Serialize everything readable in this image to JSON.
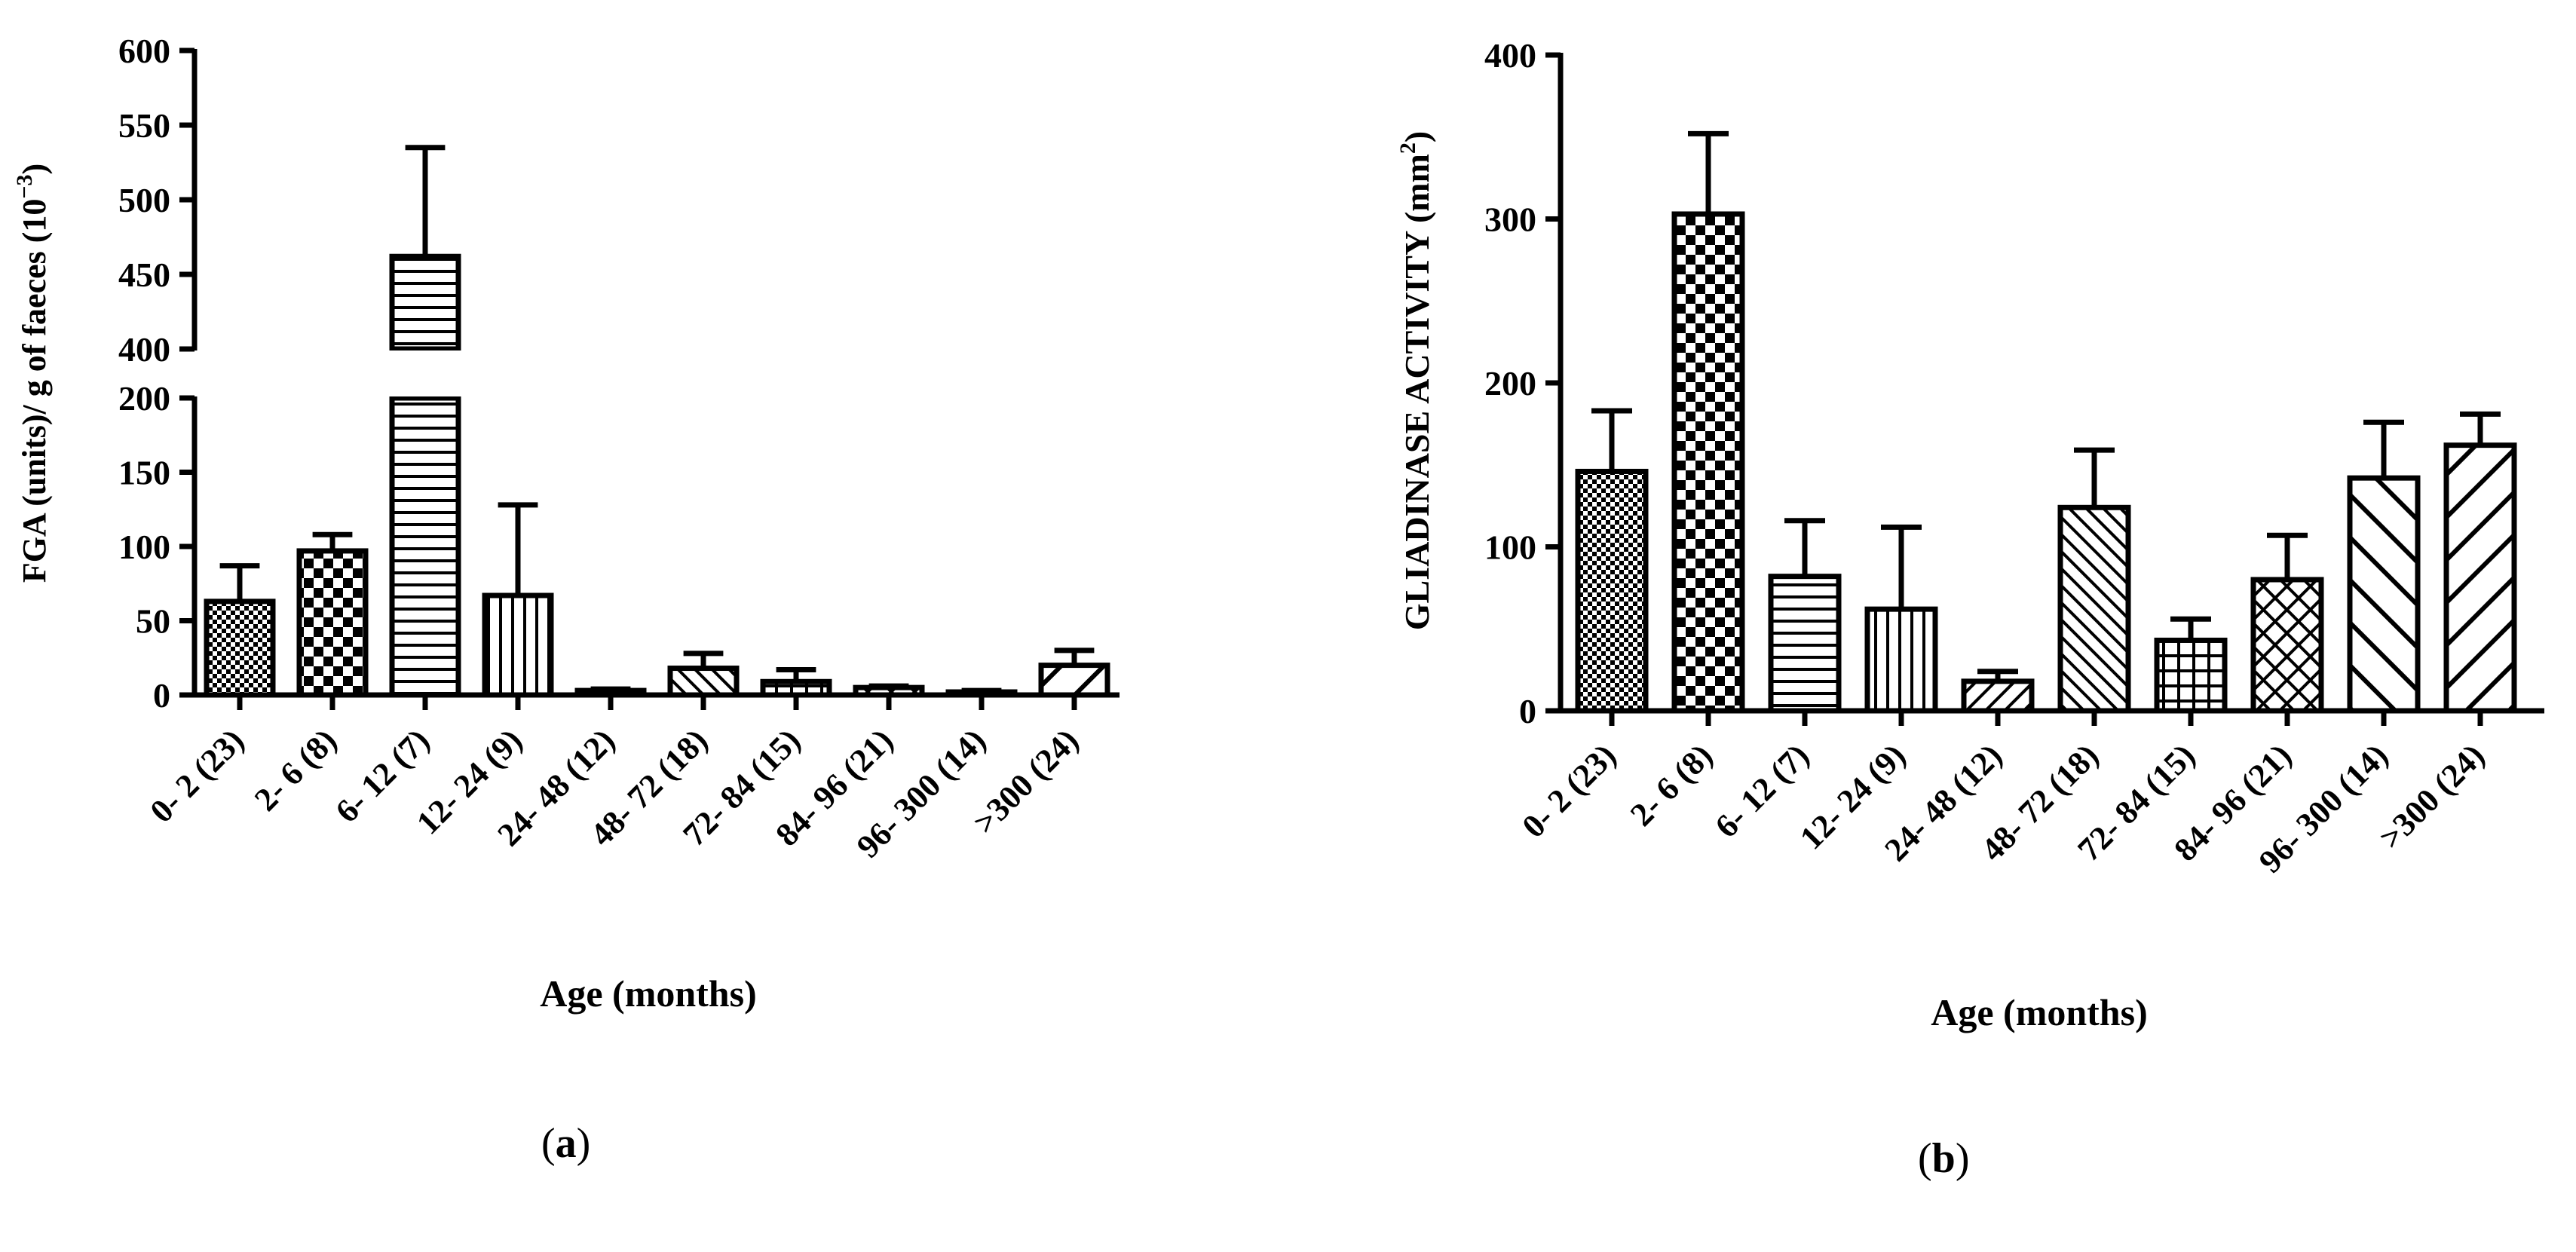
{
  "captions": {
    "a_prefix": "(",
    "a_letter": "a",
    "a_suffix": ")",
    "b_prefix": "(",
    "b_letter": "b",
    "b_suffix": ")"
  },
  "chart_data": [
    {
      "type": "bar",
      "panel": "a",
      "ylabel_main": "FGA (units)/ g of faeces (10",
      "ylabel_exp": "−3",
      "ylabel_close": ")",
      "xlabel": "Age (months)",
      "categories": [
        "0- 2 (23)",
        "2- 6 (8)",
        "6- 12 (7)",
        "12- 24 (9)",
        "24- 48 (12)",
        "48- 72 (18)",
        "72- 84 (15)",
        "84- 96 (21)",
        "96- 300 (14)",
        ">300 (24)"
      ],
      "values": [
        63,
        97,
        462,
        67,
        3,
        18,
        9,
        5,
        2,
        20
      ],
      "error_upper": [
        87,
        108,
        535,
        128,
        4,
        28,
        17,
        6,
        3,
        30
      ],
      "broken_axis": {
        "lower_range": [
          0,
          200
        ],
        "upper_range": [
          400,
          600
        ]
      },
      "lower_ticks": [
        0,
        50,
        100,
        150,
        200
      ],
      "upper_ticks": [
        400,
        450,
        500,
        550,
        600
      ],
      "patterns": [
        "dots",
        "checker",
        "hlines",
        "vlines",
        "diag-ne",
        "diag-nw",
        "grid",
        "crosshatch",
        "diag-nw-wide",
        "diag-ne-wide"
      ]
    },
    {
      "type": "bar",
      "panel": "b",
      "ylabel_main": "GLIADINASE ACTIVITY (mm",
      "ylabel_exp": "2",
      "ylabel_close": ")",
      "xlabel": "Age (months)",
      "categories": [
        "0- 2 (23)",
        "2- 6 (8)",
        "6- 12 (7)",
        "12- 24 (9)",
        "24- 48 (12)",
        "48- 72 (18)",
        "72- 84 (15)",
        "84- 96 (21)",
        "96- 300 (14)",
        ">300 (24)"
      ],
      "values": [
        146,
        303,
        82,
        62,
        18,
        124,
        43,
        80,
        142,
        162
      ],
      "error_upper": [
        183,
        352,
        116,
        112,
        24,
        159,
        56,
        107,
        176,
        181
      ],
      "ylim": [
        0,
        400
      ],
      "ticks": [
        0,
        100,
        200,
        300,
        400
      ],
      "patterns": [
        "dots",
        "checker",
        "hlines",
        "vlines",
        "diag-ne",
        "diag-nw",
        "grid",
        "crosshatch",
        "diag-nw-wide",
        "diag-ne-wide"
      ]
    }
  ]
}
